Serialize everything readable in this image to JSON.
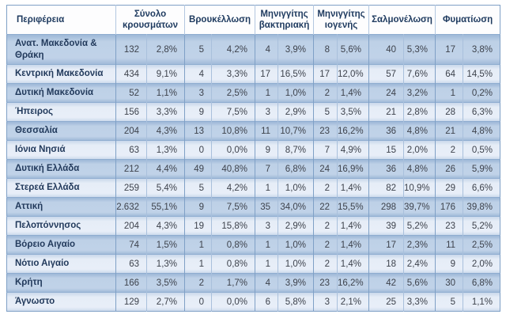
{
  "colors": {
    "outer_border": "#7fa0c6",
    "row_separator": "#8fadd0",
    "group_divider": "#7fa0c6",
    "minor_divider": "#a9c0dc",
    "header_bg": "#fdfdfe",
    "header_text": "#1e3a5f",
    "dark_row_fill": "#b5cbe3",
    "light_row_fill": "#e2eaf5",
    "body_text": "#3d424c"
  },
  "chart_data": {
    "type": "table",
    "title": "",
    "header": {
      "region": "Περιφέρεια",
      "groups": [
        "Σύνολο κρουσμάτων",
        "Βρουκέλλωση",
        "Μηνιγγίτης βακτηριακή",
        "Μηνιγγίτης ιογενής",
        "Σαλμονέλωση",
        "Φυματίωση"
      ],
      "subcolumns_per_group": [
        "count",
        "percent"
      ]
    },
    "rows": [
      {
        "region": "Ανατ. Μακεδονία & Θράκη",
        "values": [
          "132",
          "2,8%",
          "5",
          "4,2%",
          "4",
          "3,9%",
          "8",
          "5,6%",
          "40",
          "5,3%",
          "17",
          "3,8%"
        ]
      },
      {
        "region": "Κεντρική Μακεδονία",
        "values": [
          "434",
          "9,1%",
          "4",
          "3,3%",
          "17",
          "16,5%",
          "17",
          "12,0%",
          "57",
          "7,6%",
          "64",
          "14,5%"
        ]
      },
      {
        "region": "Δυτική Μακεδονία",
        "values": [
          "52",
          "1,1%",
          "3",
          "2,5%",
          "1",
          "1,0%",
          "2",
          "1,4%",
          "24",
          "3,2%",
          "1",
          "0,2%"
        ]
      },
      {
        "region": "Ήπειρος",
        "values": [
          "156",
          "3,3%",
          "9",
          "7,5%",
          "3",
          "2,9%",
          "5",
          "3,5%",
          "21",
          "2,8%",
          "28",
          "6,3%"
        ]
      },
      {
        "region": "Θεσσαλία",
        "values": [
          "204",
          "4,3%",
          "13",
          "10,8%",
          "11",
          "10,7%",
          "23",
          "16,2%",
          "36",
          "4,8%",
          "21",
          "4,8%"
        ]
      },
      {
        "region": "Ιόνια Νησιά",
        "values": [
          "63",
          "1,3%",
          "0",
          "0,0%",
          "9",
          "8,7%",
          "7",
          "4,9%",
          "15",
          "2,0%",
          "2",
          "0,5%"
        ]
      },
      {
        "region": "Δυτική Ελλάδα",
        "values": [
          "212",
          "4,4%",
          "49",
          "40,8%",
          "7",
          "6,8%",
          "24",
          "16,9%",
          "36",
          "4,8%",
          "26",
          "5,9%"
        ]
      },
      {
        "region": "Στερεά Ελλάδα",
        "values": [
          "259",
          "5,4%",
          "5",
          "4,2%",
          "1",
          "1,0%",
          "2",
          "1,4%",
          "82",
          "10,9%",
          "29",
          "6,6%"
        ]
      },
      {
        "region": "Αττική",
        "values": [
          "2.632",
          "55,1%",
          "9",
          "7,5%",
          "35",
          "34,0%",
          "22",
          "15,5%",
          "298",
          "39,7%",
          "176",
          "39,8%"
        ]
      },
      {
        "region": "Πελοπόννησος",
        "values": [
          "204",
          "4,3%",
          "19",
          "15,8%",
          "3",
          "2,9%",
          "2",
          "1,4%",
          "39",
          "5,2%",
          "23",
          "5,2%"
        ]
      },
      {
        "region": "Βόρειο Αιγαίο",
        "values": [
          "74",
          "1,5%",
          "1",
          "0,8%",
          "1",
          "1,0%",
          "2",
          "1,4%",
          "17",
          "2,3%",
          "11",
          "2,5%"
        ]
      },
      {
        "region": "Νότιο Αιγαίο",
        "values": [
          "63",
          "1,3%",
          "1",
          "0,8%",
          "1",
          "1,0%",
          "2",
          "1,4%",
          "18",
          "2,4%",
          "9",
          "2,0%"
        ]
      },
      {
        "region": "Κρήτη",
        "values": [
          "166",
          "3,5%",
          "2",
          "1,7%",
          "4",
          "3,9%",
          "23",
          "16,2%",
          "42",
          "5,6%",
          "30",
          "6,8%"
        ]
      },
      {
        "region": "Άγνωστο",
        "values": [
          "129",
          "2,7%",
          "0",
          "0,0%",
          "6",
          "5,8%",
          "3",
          "2,1%",
          "25",
          "3,3%",
          "5",
          "1,1%"
        ]
      }
    ]
  }
}
